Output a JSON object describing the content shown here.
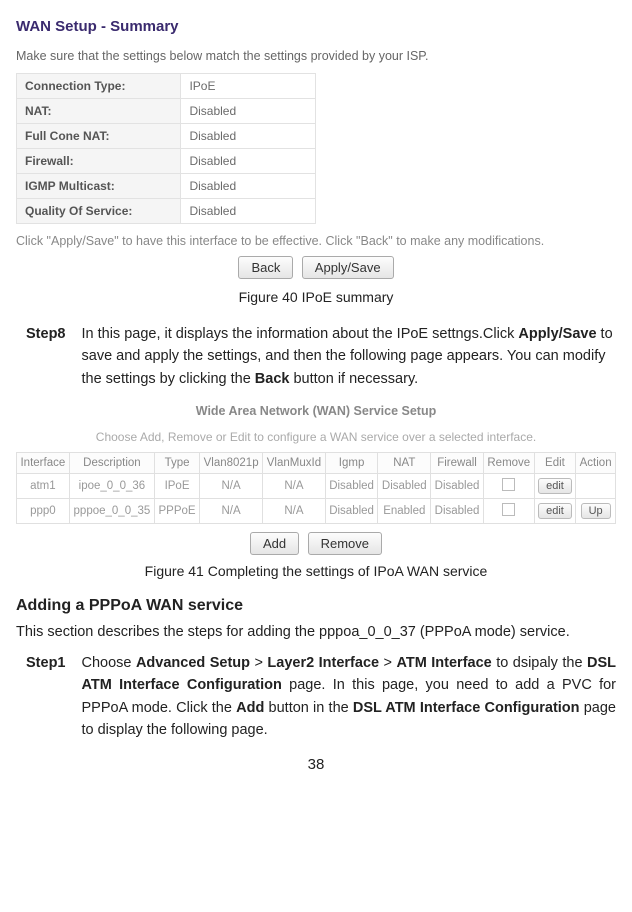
{
  "wanSummary": {
    "title": "WAN Setup - Summary",
    "subtext": "Make sure that the settings below match the settings provided by your ISP.",
    "rows": [
      {
        "label": "Connection Type:",
        "value": "IPoE"
      },
      {
        "label": "NAT:",
        "value": "Disabled"
      },
      {
        "label": "Full Cone NAT:",
        "value": "Disabled"
      },
      {
        "label": "Firewall:",
        "value": "Disabled"
      },
      {
        "label": "IGMP Multicast:",
        "value": "Disabled"
      },
      {
        "label": "Quality Of Service:",
        "value": "Disabled"
      }
    ],
    "applyNote": "Click \"Apply/Save\" to have this interface to be effective. Click \"Back\" to make any modifications.",
    "backBtn": "Back",
    "applyBtn": "Apply/Save"
  },
  "fig40": "Figure 40 IPoE summary",
  "step8": {
    "label": "Step8",
    "textPrefix": "In this page, it displays the information about the IPoE settngs.Click ",
    "applySave": "Apply/Save",
    "textMid": " to save and apply the settings, and then the following page appears. You can modify the settings by clicking the ",
    "backWord": "Back",
    "textSuffix": " button if necessary."
  },
  "svc": {
    "title": "Wide Area Network (WAN) Service Setup",
    "sub": "Choose Add, Remove or Edit to configure a WAN service over a selected interface.",
    "headers": [
      "Interface",
      "Description",
      "Type",
      "Vlan8021p",
      "VlanMuxId",
      "Igmp",
      "NAT",
      "Firewall",
      "Remove",
      "Edit",
      "Action"
    ],
    "rows": [
      {
        "iface": "atm1",
        "desc": "ipoe_0_0_36",
        "type": "IPoE",
        "v1": "N/A",
        "v2": "N/A",
        "igmp": "Disabled",
        "nat": "Disabled",
        "fw": "Disabled",
        "edit": "edit",
        "action": ""
      },
      {
        "iface": "ppp0",
        "desc": "pppoe_0_0_35",
        "type": "PPPoE",
        "v1": "N/A",
        "v2": "N/A",
        "igmp": "Disabled",
        "nat": "Enabled",
        "fw": "Disabled",
        "edit": "edit",
        "action": "Up"
      }
    ],
    "addBtn": "Add",
    "removeBtn": "Remove"
  },
  "fig41": "Figure 41 Completing the settings of IPoA WAN service",
  "h3": "Adding a PPPoA WAN service",
  "intro": "This section describes the steps for adding the pppoa_0_0_37 (PPPoA mode) service.",
  "step1": {
    "label": "Step1",
    "p1": "Choose ",
    "b1": "Advanced Setup",
    "gt1": " > ",
    "b2": "Layer2 Interface",
    "gt2": " > ",
    "b3": "ATM Interface",
    "p2": " to dsipaly the ",
    "b4": "DSL ATM Interface Configuration",
    "p3": " page. In this page, you need to add a PVC for PPPoA mode. Click the ",
    "b5": "Add",
    "p4": " button in the ",
    "b6": "DSL ATM Interface Configuration",
    "p5": " page to display the following page."
  },
  "pageNum": "38"
}
